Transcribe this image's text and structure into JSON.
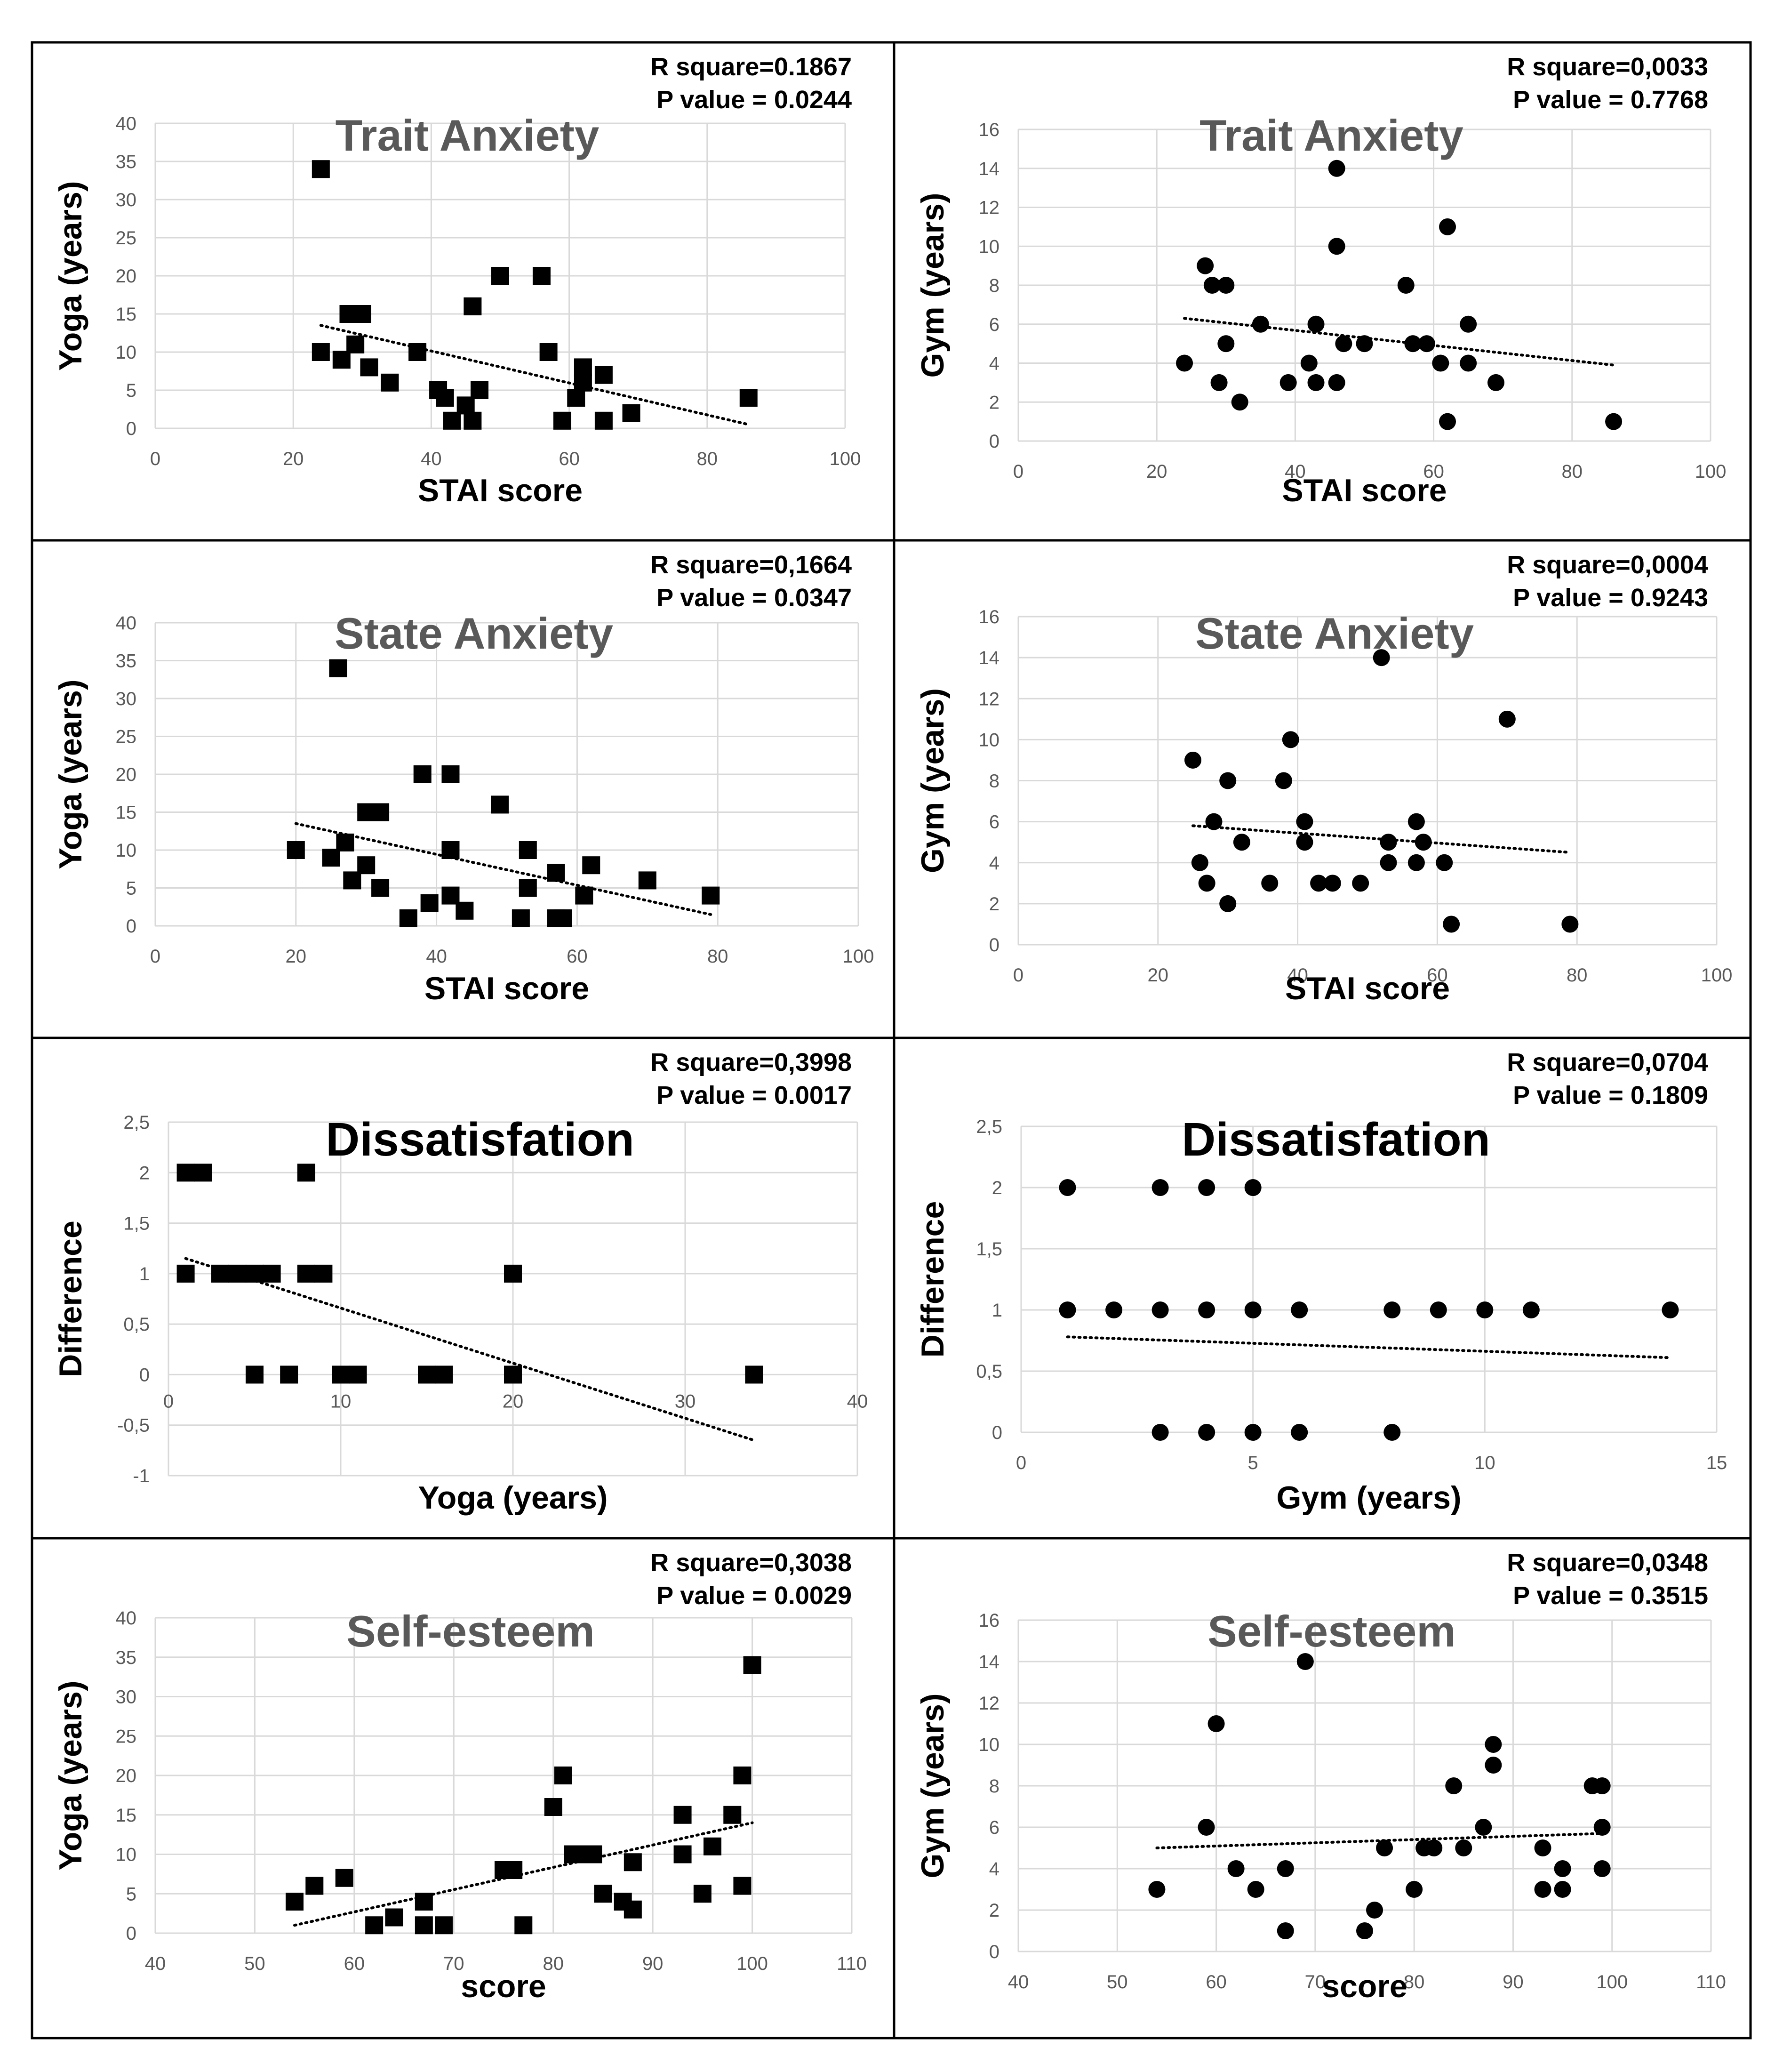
{
  "figure": {
    "panel_count": 8
  },
  "chart_data": [
    {
      "type": "scatter",
      "title": "Trait Anxiety",
      "stats": {
        "r_square": "R square=0.1867",
        "p_value": "P value   = 0.0244"
      },
      "xlabel": "STAI score",
      "ylabel": "Yoga (years)",
      "xlim": [
        0,
        100
      ],
      "ylim": [
        0,
        40
      ],
      "xticks": [
        0,
        20,
        40,
        60,
        80,
        100
      ],
      "yticks": [
        0,
        5,
        10,
        15,
        20,
        25,
        30,
        35,
        40
      ],
      "marker": "square",
      "points": [
        [
          24,
          34
        ],
        [
          24,
          10
        ],
        [
          27,
          9
        ],
        [
          28,
          15
        ],
        [
          29,
          11
        ],
        [
          30,
          15
        ],
        [
          31,
          8
        ],
        [
          34,
          6
        ],
        [
          38,
          10
        ],
        [
          41,
          5
        ],
        [
          42,
          4
        ],
        [
          43,
          1
        ],
        [
          45,
          3
        ],
        [
          46,
          16
        ],
        [
          46,
          1
        ],
        [
          47,
          5
        ],
        [
          50,
          20
        ],
        [
          56,
          20
        ],
        [
          57,
          10
        ],
        [
          59,
          1
        ],
        [
          61,
          4
        ],
        [
          62,
          8
        ],
        [
          62,
          6
        ],
        [
          65,
          7
        ],
        [
          65,
          1
        ],
        [
          69,
          2
        ],
        [
          86,
          4
        ]
      ],
      "trendline": [
        [
          24,
          13.5
        ],
        [
          86,
          0.5
        ]
      ]
    },
    {
      "type": "scatter",
      "title": "Trait Anxiety",
      "stats": {
        "r_square": "R square=0,0033",
        "p_value": "P value   = 0.7768"
      },
      "xlabel": "STAI score",
      "ylabel": "Gym (years)",
      "xlim": [
        0,
        100
      ],
      "ylim": [
        0,
        16
      ],
      "xticks": [
        0,
        20,
        40,
        60,
        80,
        100
      ],
      "yticks": [
        0,
        2,
        4,
        6,
        8,
        10,
        12,
        14,
        16
      ],
      "marker": "circle",
      "points": [
        [
          24,
          4
        ],
        [
          27,
          9
        ],
        [
          28,
          8
        ],
        [
          29,
          3
        ],
        [
          30,
          8
        ],
        [
          30,
          5
        ],
        [
          32,
          2
        ],
        [
          35,
          6
        ],
        [
          39,
          3
        ],
        [
          42,
          4
        ],
        [
          43,
          6
        ],
        [
          43,
          3
        ],
        [
          46,
          14
        ],
        [
          46,
          10
        ],
        [
          46,
          3
        ],
        [
          47,
          5
        ],
        [
          50,
          5
        ],
        [
          56,
          8
        ],
        [
          57,
          5
        ],
        [
          59,
          5
        ],
        [
          61,
          4
        ],
        [
          62,
          11
        ],
        [
          62,
          1
        ],
        [
          65,
          6
        ],
        [
          65,
          4
        ],
        [
          69,
          3
        ],
        [
          86,
          1
        ]
      ],
      "trendline": [
        [
          24,
          6.3
        ],
        [
          86,
          3.9
        ]
      ]
    },
    {
      "type": "scatter",
      "title": "State Anxiety",
      "stats": {
        "r_square": "R square=0,1664",
        "p_value": "P value   = 0.0347"
      },
      "xlabel": "STAI score",
      "ylabel": "Yoga (years)",
      "xlim": [
        0,
        100
      ],
      "ylim": [
        0,
        40
      ],
      "xticks": [
        0,
        20,
        40,
        60,
        80,
        100
      ],
      "yticks": [
        0,
        5,
        10,
        15,
        20,
        25,
        30,
        35,
        40
      ],
      "marker": "square",
      "points": [
        [
          20,
          10
        ],
        [
          25,
          9
        ],
        [
          26,
          34
        ],
        [
          27,
          11
        ],
        [
          28,
          6
        ],
        [
          30,
          15
        ],
        [
          30,
          8
        ],
        [
          32,
          15
        ],
        [
          32,
          5
        ],
        [
          36,
          1
        ],
        [
          38,
          20
        ],
        [
          39,
          3
        ],
        [
          42,
          20
        ],
        [
          42,
          10
        ],
        [
          42,
          4
        ],
        [
          44,
          2
        ],
        [
          49,
          16
        ],
        [
          52,
          1
        ],
        [
          53,
          10
        ],
        [
          53,
          5
        ],
        [
          57,
          7
        ],
        [
          57,
          1
        ],
        [
          58,
          1
        ],
        [
          61,
          4
        ],
        [
          62,
          8
        ],
        [
          70,
          6
        ],
        [
          79,
          4
        ]
      ],
      "trendline": [
        [
          20,
          13.5
        ],
        [
          79,
          1.5
        ]
      ]
    },
    {
      "type": "scatter",
      "title": "State Anxiety",
      "stats": {
        "r_square": "R square=0,0004",
        "p_value": "P value   = 0.9243"
      },
      "xlabel": "STAI score",
      "ylabel": "Gym (years)",
      "xlim": [
        0,
        100
      ],
      "ylim": [
        0,
        16
      ],
      "xticks": [
        0,
        20,
        40,
        60,
        80,
        100
      ],
      "yticks": [
        0,
        2,
        4,
        6,
        8,
        10,
        12,
        14,
        16
      ],
      "marker": "circle",
      "points": [
        [
          25,
          9
        ],
        [
          26,
          4
        ],
        [
          27,
          3
        ],
        [
          28,
          6
        ],
        [
          30,
          8
        ],
        [
          30,
          2
        ],
        [
          32,
          5
        ],
        [
          36,
          3
        ],
        [
          38,
          8
        ],
        [
          39,
          10
        ],
        [
          41,
          6
        ],
        [
          41,
          5
        ],
        [
          43,
          3
        ],
        [
          45,
          3
        ],
        [
          49,
          3
        ],
        [
          52,
          14
        ],
        [
          53,
          5
        ],
        [
          53,
          4
        ],
        [
          57,
          6
        ],
        [
          57,
          4
        ],
        [
          58,
          5
        ],
        [
          61,
          4
        ],
        [
          62,
          1
        ],
        [
          70,
          11
        ],
        [
          79,
          1
        ]
      ],
      "trendline": [
        [
          25,
          5.8
        ],
        [
          79,
          4.5
        ]
      ]
    },
    {
      "type": "scatter",
      "title": "Dissatisfation",
      "stats": {
        "r_square": "R square=0,3998",
        "p_value": "P value   = 0.0017"
      },
      "xlabel": "Yoga (years)",
      "ylabel": "Difference",
      "xlim": [
        0,
        40
      ],
      "ylim": [
        -1,
        2.5
      ],
      "xticks": [
        0,
        10,
        20,
        30,
        40
      ],
      "yticks": [
        -1,
        -0.5,
        0,
        0.5,
        1,
        1.5,
        2,
        2.5
      ],
      "yticklabels": [
        "-1",
        "-0,5",
        "0",
        "0,5",
        "1",
        "1,5",
        "2",
        "2,5"
      ],
      "marker": "square",
      "points": [
        [
          1,
          2
        ],
        [
          2,
          2
        ],
        [
          8,
          2
        ],
        [
          1,
          1
        ],
        [
          3,
          1
        ],
        [
          4,
          1
        ],
        [
          5,
          1
        ],
        [
          6,
          1
        ],
        [
          8,
          1
        ],
        [
          9,
          1
        ],
        [
          20,
          1
        ],
        [
          5,
          0
        ],
        [
          7,
          0
        ],
        [
          10,
          0
        ],
        [
          11,
          0
        ],
        [
          15,
          0
        ],
        [
          16,
          0
        ],
        [
          20,
          0
        ],
        [
          34,
          0
        ]
      ],
      "trendline": [
        [
          1,
          1.15
        ],
        [
          34,
          -0.65
        ]
      ]
    },
    {
      "type": "scatter",
      "title": "Dissatisfation",
      "stats": {
        "r_square": "R square=0,0704",
        "p_value": "P value   = 0.1809"
      },
      "xlabel": "Gym (years)",
      "ylabel": "Difference",
      "xlim": [
        0,
        15
      ],
      "ylim": [
        0,
        2.5
      ],
      "xticks": [
        0,
        5,
        10,
        15
      ],
      "yticks": [
        0,
        0.5,
        1,
        1.5,
        2,
        2.5
      ],
      "yticklabels": [
        "0",
        "0,5",
        "1",
        "1,5",
        "2",
        "2,5"
      ],
      "marker": "circle",
      "points": [
        [
          1,
          2
        ],
        [
          3,
          2
        ],
        [
          4,
          2
        ],
        [
          5,
          2
        ],
        [
          1,
          1
        ],
        [
          2,
          1
        ],
        [
          3,
          1
        ],
        [
          4,
          1
        ],
        [
          5,
          1
        ],
        [
          6,
          1
        ],
        [
          8,
          1
        ],
        [
          9,
          1
        ],
        [
          10,
          1
        ],
        [
          11,
          1
        ],
        [
          14,
          1
        ],
        [
          3,
          0
        ],
        [
          4,
          0
        ],
        [
          5,
          0
        ],
        [
          6,
          0
        ],
        [
          8,
          0
        ]
      ],
      "trendline": [
        [
          1,
          0.78
        ],
        [
          14,
          0.61
        ]
      ]
    },
    {
      "type": "scatter",
      "title": "Self-esteem",
      "stats": {
        "r_square": "R square=0,3038",
        "p_value": "P value   = 0.0029"
      },
      "xlabel": "score",
      "ylabel": "Yoga (years)",
      "xlim": [
        40,
        110
      ],
      "ylim": [
        0,
        40
      ],
      "xticks": [
        40,
        50,
        60,
        70,
        80,
        90,
        100,
        110
      ],
      "yticks": [
        0,
        5,
        10,
        15,
        20,
        25,
        30,
        35,
        40
      ],
      "marker": "square",
      "points": [
        [
          54,
          4
        ],
        [
          56,
          6
        ],
        [
          59,
          7
        ],
        [
          62,
          1
        ],
        [
          64,
          2
        ],
        [
          67,
          4
        ],
        [
          67,
          1
        ],
        [
          69,
          1
        ],
        [
          75,
          8
        ],
        [
          76,
          8
        ],
        [
          77,
          1
        ],
        [
          80,
          16
        ],
        [
          81,
          20
        ],
        [
          82,
          10
        ],
        [
          83,
          10
        ],
        [
          84,
          10
        ],
        [
          85,
          5
        ],
        [
          87,
          4
        ],
        [
          88,
          3
        ],
        [
          88,
          9
        ],
        [
          93,
          15
        ],
        [
          93,
          10
        ],
        [
          95,
          5
        ],
        [
          96,
          11
        ],
        [
          98,
          15
        ],
        [
          99,
          20
        ],
        [
          99,
          6
        ],
        [
          100,
          34
        ]
      ],
      "trendline": [
        [
          54,
          1
        ],
        [
          100,
          14
        ]
      ]
    },
    {
      "type": "scatter",
      "title": "Self-esteem",
      "stats": {
        "r_square": "R square=0,0348",
        "p_value": "P value   = 0.3515"
      },
      "xlabel": "score",
      "ylabel": "Gym (years)",
      "xlim": [
        40,
        110
      ],
      "ylim": [
        0,
        16
      ],
      "xticks": [
        40,
        50,
        60,
        70,
        80,
        90,
        100,
        110
      ],
      "yticks": [
        0,
        2,
        4,
        6,
        8,
        10,
        12,
        14,
        16
      ],
      "marker": "circle",
      "points": [
        [
          54,
          3
        ],
        [
          59,
          6
        ],
        [
          60,
          11
        ],
        [
          62,
          4
        ],
        [
          64,
          3
        ],
        [
          67,
          4
        ],
        [
          67,
          1
        ],
        [
          69,
          14
        ],
        [
          75,
          1
        ],
        [
          76,
          2
        ],
        [
          77,
          5
        ],
        [
          80,
          3
        ],
        [
          81,
          5
        ],
        [
          82,
          5
        ],
        [
          84,
          8
        ],
        [
          85,
          5
        ],
        [
          87,
          6
        ],
        [
          88,
          10
        ],
        [
          88,
          9
        ],
        [
          93,
          5
        ],
        [
          93,
          3
        ],
        [
          95,
          3
        ],
        [
          95,
          4
        ],
        [
          98,
          8
        ],
        [
          99,
          8
        ],
        [
          99,
          6
        ],
        [
          99,
          4
        ]
      ],
      "trendline": [
        [
          54,
          5
        ],
        [
          99,
          5.7
        ]
      ]
    }
  ]
}
